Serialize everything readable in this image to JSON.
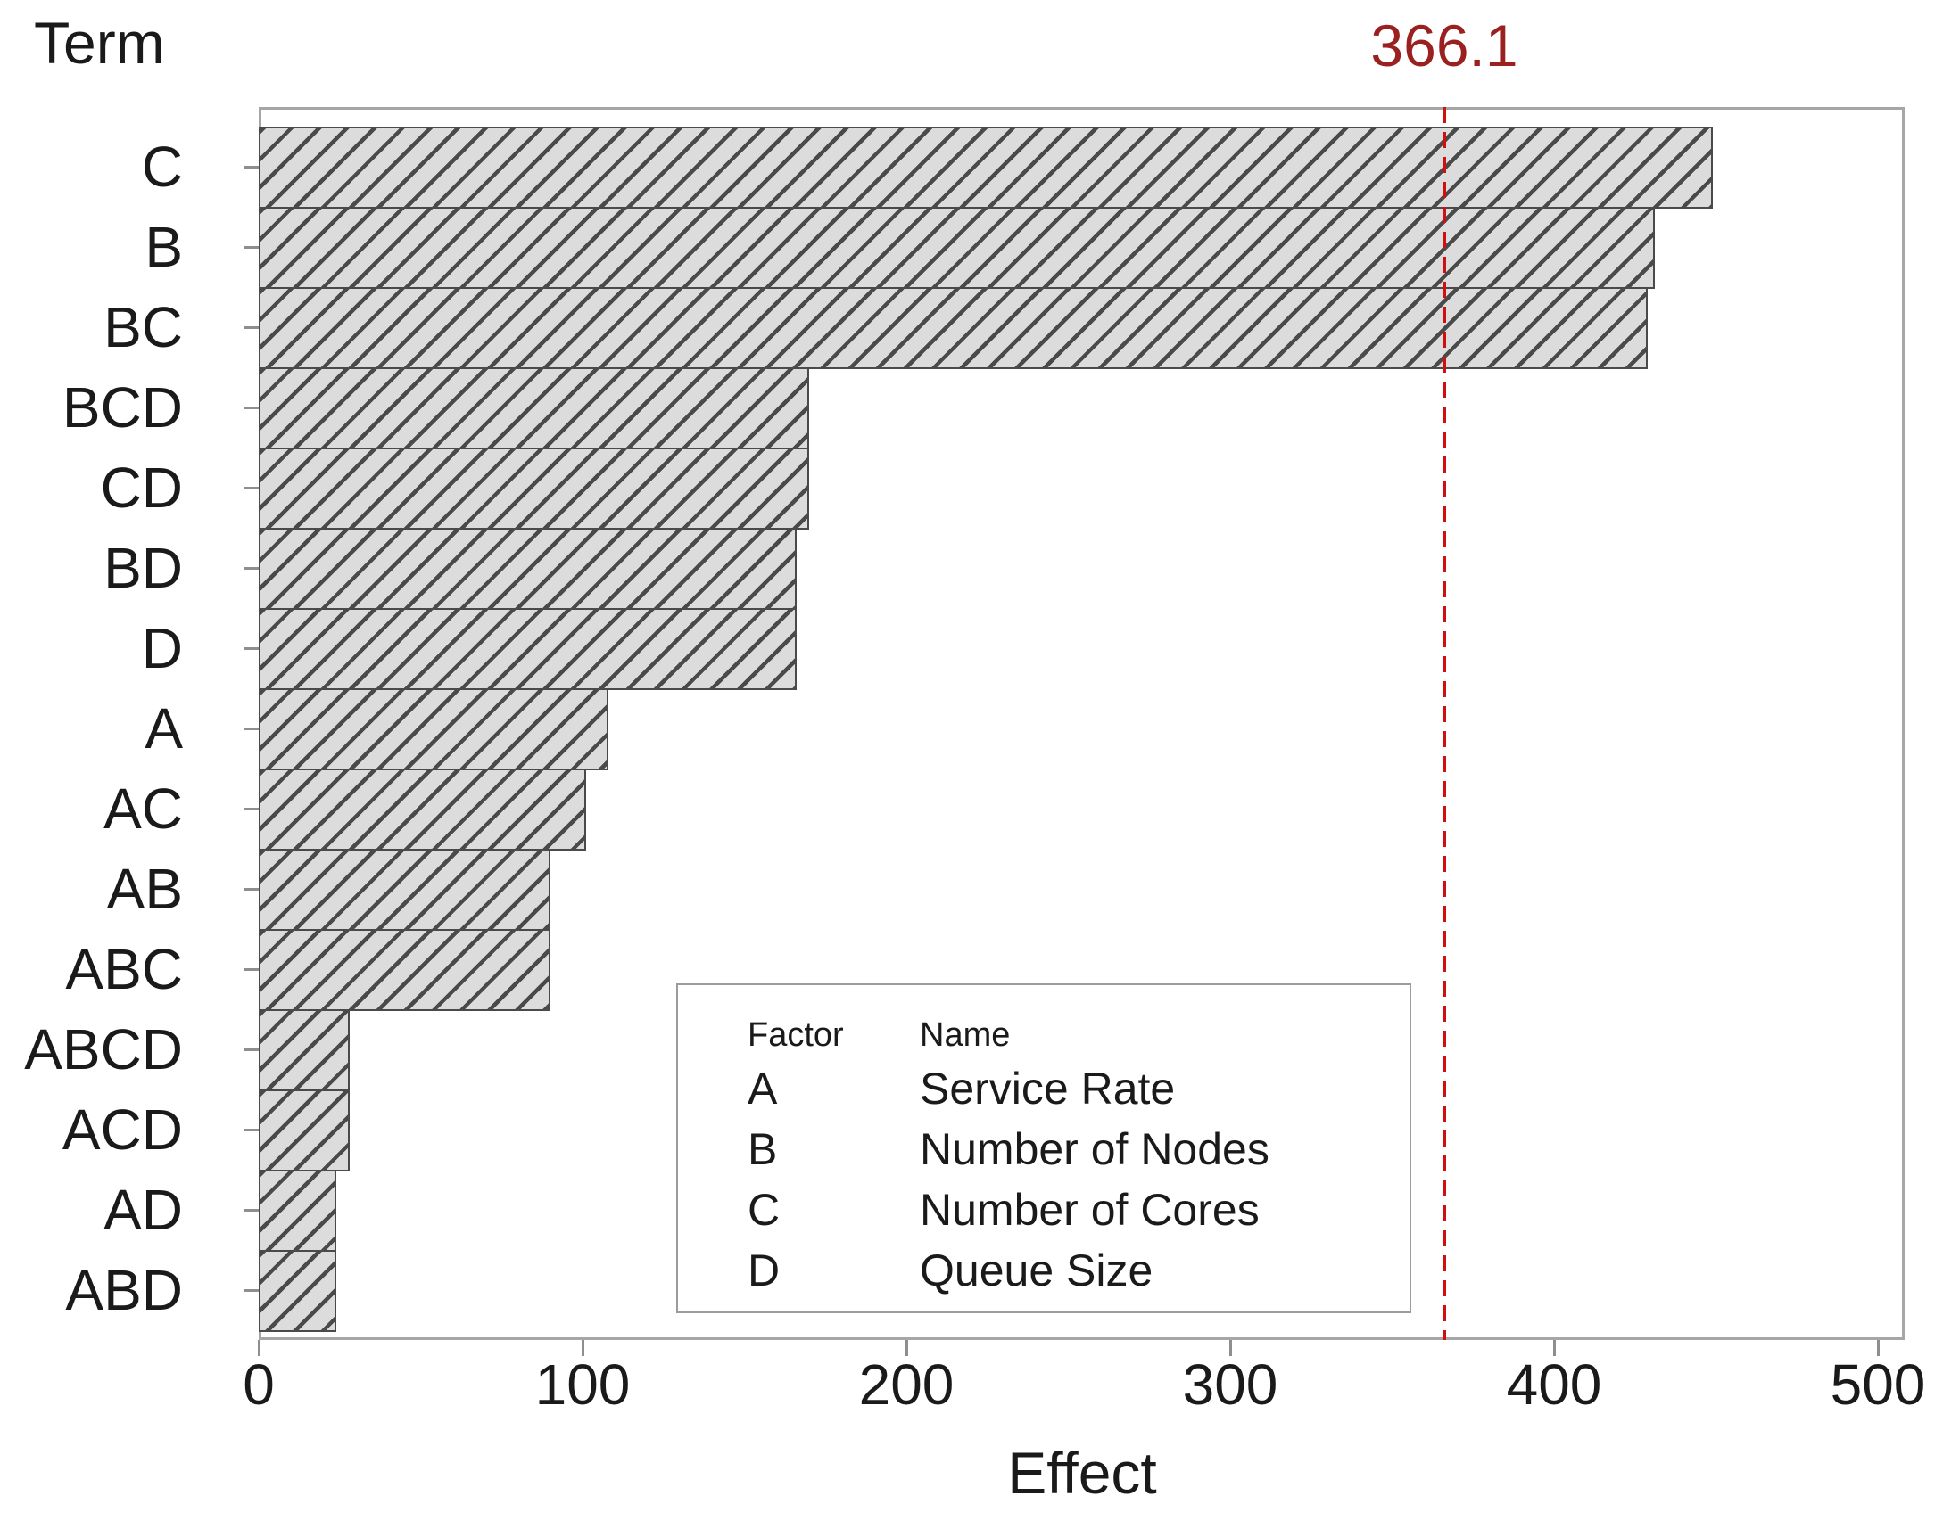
{
  "chart_data": {
    "type": "bar",
    "orientation": "horizontal",
    "title": "",
    "ylabel": "Term",
    "xlabel": "Effect",
    "categories": [
      "C",
      "B",
      "BC",
      "BCD",
      "CD",
      "BD",
      "D",
      "A",
      "AC",
      "AB",
      "ABC",
      "ABCD",
      "ACD",
      "AD",
      "ABD"
    ],
    "values": [
      449,
      431,
      429,
      170,
      170,
      166,
      166,
      108,
      101,
      90,
      90,
      28,
      28,
      24,
      24
    ],
    "x_ticks": [
      0,
      100,
      200,
      300,
      400,
      500
    ],
    "xlim": [
      0,
      508
    ],
    "grid": false,
    "reference_line": {
      "value": 366.1,
      "label": "366.1",
      "style": "dashed",
      "line_color": "#d01010",
      "label_color": "#9b2121"
    },
    "bar_style": {
      "fill": "#dcdcdc",
      "hatch": "diagonal-forward-slash",
      "hatch_color": "#4a4a4a",
      "border_color": "#4a4a4a"
    },
    "legend": {
      "position": "inside-bottom-center",
      "headers": [
        "Factor",
        "Name"
      ],
      "rows": [
        {
          "factor": "A",
          "name": "Service Rate"
        },
        {
          "factor": "B",
          "name": "Number of Nodes"
        },
        {
          "factor": "C",
          "name": "Number of Cores"
        },
        {
          "factor": "D",
          "name": "Queue Size"
        }
      ]
    }
  }
}
